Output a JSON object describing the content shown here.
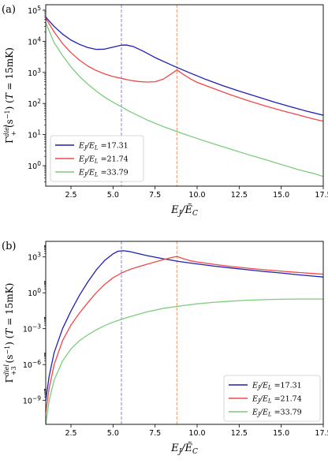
{
  "colors": {
    "blue": "#1f1fb4",
    "red": "#f04848",
    "green": "#7ccc7c",
    "vline_blue": "#9a9ae0",
    "vline_red": "#f0a880"
  },
  "chart_data": [
    {
      "type": "line",
      "panel_label": "(a)",
      "xlabel": "E_J/Ẽ_C",
      "ylabel": "Γ_+^{diel} (s^{-1}) (T = 15mK)",
      "yscale": "log",
      "xlim": [
        1.0,
        17.5
      ],
      "ylim": [
        0.22,
        150000
      ],
      "xticks": [
        2.5,
        5.0,
        7.5,
        10.0,
        12.5,
        15.0,
        17.5
      ],
      "xtick_labels": [
        "2.5",
        "5.0",
        "7.5",
        "10.0",
        "12.5",
        "15.0",
        "17.5"
      ],
      "yticks": [
        1,
        10,
        100,
        1000,
        10000,
        100000
      ],
      "ytick_labels": [
        "10^0",
        "10^1",
        "10^2",
        "10^3",
        "10^4",
        "10^5"
      ],
      "vlines": [
        {
          "x": 5.5,
          "color": "vline_blue"
        },
        {
          "x": 8.8,
          "color": "vline_red"
        }
      ],
      "legend_position": "lower-left",
      "series": [
        {
          "name": "E_J/E_L =17.31",
          "color": "blue",
          "x": [
            1.0,
            1.5,
            2.0,
            2.5,
            3.0,
            3.5,
            4.0,
            4.5,
            5.0,
            5.5,
            5.8,
            6.2,
            6.8,
            7.5,
            8.5,
            9.5,
            10.5,
            11.5,
            12.5,
            13.5,
            14.5,
            15.5,
            16.5,
            17.5
          ],
          "y": [
            60000,
            30000,
            17000,
            11000,
            8000,
            6300,
            5500,
            5600,
            6500,
            7500,
            7600,
            6800,
            4800,
            3000,
            1700,
            1000,
            600,
            380,
            250,
            170,
            115,
            80,
            57,
            42
          ]
        },
        {
          "name": "E_J/E_L =21.74",
          "color": "red",
          "x": [
            1.0,
            1.5,
            2.0,
            2.5,
            3.0,
            3.5,
            4.0,
            4.5,
            5.0,
            5.5,
            6.0,
            6.5,
            7.0,
            7.5,
            8.0,
            8.4,
            8.8,
            9.2,
            9.6,
            10.0,
            11.0,
            12.0,
            13.0,
            14.0,
            15.0,
            16.0,
            17.0,
            17.5
          ],
          "y": [
            55000,
            20000,
            8500,
            4300,
            2500,
            1600,
            1150,
            900,
            740,
            640,
            560,
            510,
            490,
            500,
            610,
            850,
            1200,
            850,
            620,
            480,
            300,
            190,
            125,
            85,
            60,
            43,
            31,
            27
          ]
        },
        {
          "name": "E_J/E_L =33.79",
          "color": "green",
          "x": [
            1.0,
            1.5,
            2.0,
            2.5,
            3.0,
            3.5,
            4.0,
            4.5,
            5.0,
            6.0,
            7.0,
            8.0,
            9.0,
            10.0,
            11.0,
            12.0,
            13.0,
            14.0,
            15.0,
            16.0,
            17.0,
            17.5
          ],
          "y": [
            40000,
            9000,
            3500,
            1500,
            750,
            420,
            250,
            160,
            110,
            55,
            30,
            18,
            11.5,
            7.5,
            5.0,
            3.4,
            2.3,
            1.6,
            1.1,
            0.75,
            0.55,
            0.45
          ]
        }
      ]
    },
    {
      "type": "line",
      "panel_label": "(b)",
      "xlabel": "E_J/Ẽ_C",
      "ylabel": "Γ_{+3}^{diel} (s^{-1}) (T = 15mK)",
      "yscale": "log",
      "xlim": [
        1.0,
        17.5
      ],
      "ylim": [
        1e-11,
        20000
      ],
      "xticks": [
        2.5,
        5.0,
        7.5,
        10.0,
        12.5,
        15.0,
        17.5
      ],
      "xtick_labels": [
        "2.5",
        "5.0",
        "7.5",
        "10.0",
        "12.5",
        "15.0",
        "17.5"
      ],
      "yticks": [
        1e-09,
        1e-06,
        0.001,
        1,
        1000
      ],
      "ytick_labels": [
        "10^-9",
        "10^-6",
        "10^-3",
        "10^0",
        "10^3"
      ],
      "vlines": [
        {
          "x": 5.5,
          "color": "vline_blue"
        },
        {
          "x": 8.8,
          "color": "vline_red"
        }
      ],
      "legend_position": "lower-right",
      "series": [
        {
          "name": "E_J/E_L =17.31",
          "color": "blue",
          "x": [
            1.0,
            1.2,
            1.5,
            2.0,
            2.5,
            3.0,
            3.5,
            4.0,
            4.5,
            5.0,
            5.3,
            5.6,
            6.0,
            6.5,
            7.0,
            8.0,
            9.0,
            10.0,
            11.0,
            12.0,
            13.0,
            14.0,
            15.0,
            16.0,
            17.0,
            17.5
          ],
          "y": [
            1e-09,
            1e-07,
            1e-05,
            0.001,
            0.03,
            0.6,
            8,
            80,
            500,
            1800,
            3000,
            3300,
            2800,
            1900,
            1300,
            700,
            400,
            260,
            170,
            120,
            85,
            60,
            45,
            32,
            24,
            21
          ]
        },
        {
          "name": "E_J/E_L =21.74",
          "color": "red",
          "x": [
            1.0,
            1.2,
            1.5,
            2.0,
            2.5,
            3.0,
            3.5,
            4.0,
            4.5,
            5.0,
            5.5,
            6.0,
            6.5,
            7.0,
            7.5,
            8.0,
            8.5,
            8.8,
            9.2,
            9.6,
            10.0,
            11.0,
            12.0,
            13.0,
            14.0,
            15.0,
            16.0,
            17.0,
            17.5
          ],
          "y": [
            1e-10,
            1e-08,
            1e-06,
            0.0001,
            0.002,
            0.02,
            0.15,
            1.0,
            5,
            18,
            45,
            90,
            150,
            240,
            380,
            600,
            900,
            1100,
            700,
            480,
            380,
            240,
            160,
            115,
            85,
            65,
            50,
            40,
            36
          ]
        },
        {
          "name": "E_J/E_L =33.79",
          "color": "green",
          "x": [
            1.0,
            1.2,
            1.5,
            2.0,
            2.5,
            3.0,
            3.5,
            4.0,
            4.5,
            5.0,
            5.5,
            6.0,
            7.0,
            8.0,
            9.0,
            10.0,
            11.0,
            12.0,
            13.0,
            14.0,
            15.0,
            16.0,
            17.0,
            17.5
          ],
          "y": [
            1e-11,
            1e-09,
            5e-08,
            2e-06,
            2e-05,
            0.0001,
            0.0003,
            0.0008,
            0.0018,
            0.0035,
            0.006,
            0.01,
            0.025,
            0.05,
            0.08,
            0.12,
            0.16,
            0.2,
            0.24,
            0.27,
            0.29,
            0.3,
            0.3,
            0.3
          ]
        }
      ]
    }
  ]
}
